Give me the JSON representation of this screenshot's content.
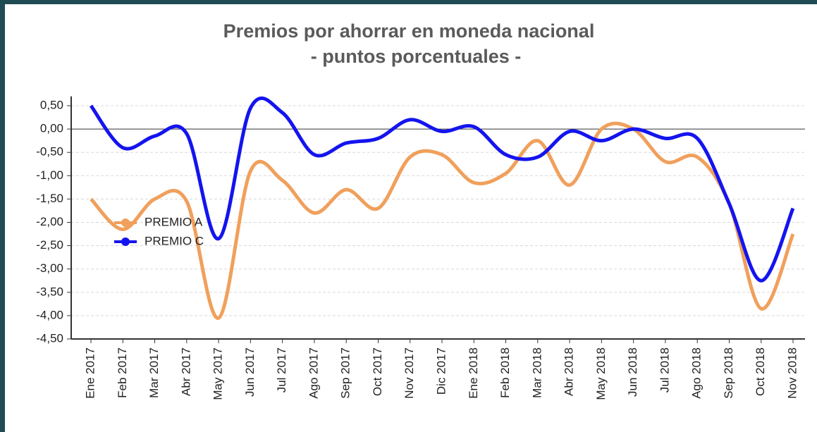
{
  "chart_data": {
    "type": "line",
    "title": "Premios por ahorrar en moneda nacional",
    "subtitle": "- puntos porcentuales -",
    "categories": [
      "Ene 2017",
      "Feb 2017",
      "Mar 2017",
      "Abr 2017",
      "May 2017",
      "Jun 2017",
      "Jul 2017",
      "Ago 2017",
      "Sep 2017",
      "Oct 2017",
      "Nov 2017",
      "Dic 2017",
      "Ene 2018",
      "Feb 2018",
      "Mar 2018",
      "Abr 2018",
      "May 2018",
      "Jun 2018",
      "Jul 2018",
      "Ago 2018",
      "Sep 2018",
      "Oct 2018",
      "Nov 2018"
    ],
    "series": [
      {
        "name": "PREMIO A",
        "color": "#f0a05c",
        "values": [
          -1.5,
          -2.15,
          -1.5,
          -1.55,
          -4.05,
          -0.9,
          -1.1,
          -1.8,
          -1.3,
          -1.7,
          -0.6,
          -0.55,
          -1.15,
          -0.95,
          -0.25,
          -1.2,
          0.0,
          0.0,
          -0.7,
          -0.6,
          -1.6,
          -3.85,
          -2.25
        ]
      },
      {
        "name": "PREMIO C",
        "color": "#1414ee",
        "values": [
          0.5,
          -0.4,
          -0.15,
          -0.1,
          -2.35,
          0.45,
          0.35,
          -0.55,
          -0.3,
          -0.2,
          0.2,
          -0.05,
          0.05,
          -0.55,
          -0.6,
          -0.05,
          -0.25,
          0.0,
          -0.2,
          -0.2,
          -1.6,
          -3.25,
          -1.7
        ]
      }
    ],
    "ylim": [
      -4.5,
      0.7
    ],
    "yticks": [
      {
        "value": 0.5,
        "label": "0,50"
      },
      {
        "value": 0,
        "label": "0,00"
      },
      {
        "value": -0.5,
        "label": "-0,50"
      },
      {
        "value": -1,
        "label": "-1,00"
      },
      {
        "value": -1.5,
        "label": "-1,50"
      },
      {
        "value": -2,
        "label": "-2,00"
      },
      {
        "value": -2.5,
        "label": "-2,50"
      },
      {
        "value": -3,
        "label": "-3,00"
      },
      {
        "value": -3.5,
        "label": "-3,50"
      },
      {
        "value": -4,
        "label": "-4,00"
      },
      {
        "value": -4.5,
        "label": "-4,50"
      }
    ],
    "grid": true
  }
}
